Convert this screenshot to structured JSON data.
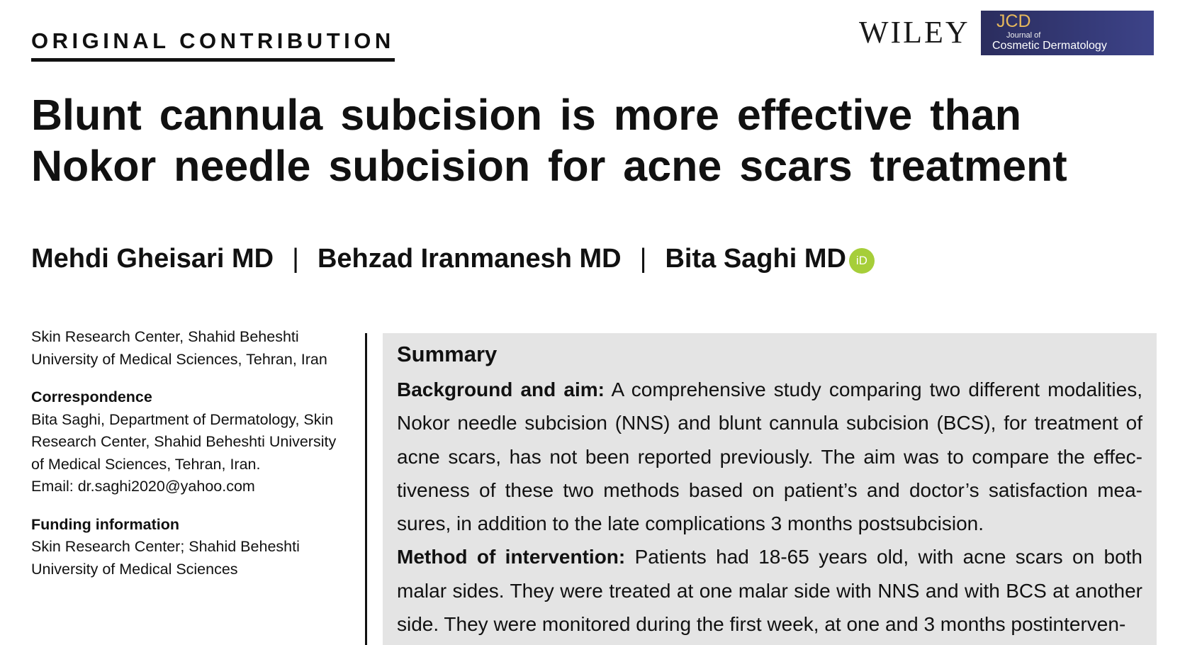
{
  "header": {
    "section_label": "ORIGINAL CONTRIBUTION",
    "publisher_logo": "WILEY",
    "journal_logo": {
      "abbr": "JCD",
      "small_text": "Journal of",
      "name": "Cosmetic Dermatology"
    }
  },
  "article": {
    "title": "Blunt cannula subcision is more effective than Nokor needle subcision for acne scars treatment",
    "authors": [
      {
        "name": "Mehdi Gheisari MD"
      },
      {
        "name": "Behzad Iranmanesh MD"
      },
      {
        "name": "Bita Saghi MD",
        "orcid_icon": "orcid-icon",
        "orcid_text": "iD"
      }
    ],
    "separator": "|"
  },
  "sidebar": {
    "affiliation_lines": [
      "Skin Research Center, Shahid Beheshti",
      "University of Medical Sciences, Tehran, Iran"
    ],
    "correspondence": {
      "heading": "Correspondence",
      "lines": [
        "Bita Saghi, Department of Dermatology, Skin",
        "Research Center, Shahid Beheshti University",
        "of Medical Sciences, Tehran, Iran.",
        "Email: dr.saghi2020@yahoo.com"
      ]
    },
    "funding": {
      "heading": "Funding information",
      "lines": [
        "Skin Research Center; Shahid Beheshti",
        "University of Medical Sciences"
      ]
    }
  },
  "summary": {
    "heading": "Summary",
    "background_label": "Background and aim:",
    "background_text": "A comprehensive study comparing two different modalities, Nokor needle subcision (NNS) and blunt cannula subcision (BCS), for treatment of acne scars, has not been reported previously. The aim was to compare the effec­tiveness of these two methods based on patient’s and doctor’s satisfaction mea­sures, in addition to the late complications 3 months postsubcision.",
    "method_label": "Method of intervention:",
    "method_text": "Patients had 18-65 years old, with acne scars on both malar sides. They were treated at one malar side with NNS and with BCS at another side. They were monitored during the first week, at one and 3 months postinterven-"
  }
}
